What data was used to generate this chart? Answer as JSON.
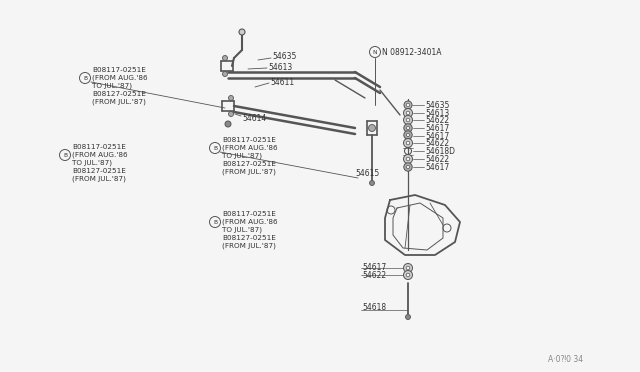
{
  "bg_color": "#f5f5f5",
  "lc": "#555555",
  "tc": "#333333",
  "watermark": "A·0⁈0 34",
  "parts_top": [
    "54635",
    "54613",
    "54611"
  ],
  "parts_center": [
    "54614",
    "54615"
  ],
  "parts_right_stack": [
    "54635",
    "54613",
    "54622",
    "54617",
    "54617",
    "54622",
    "54618D",
    "54622",
    "54617"
  ],
  "parts_bottom": [
    "54617",
    "54622",
    "54618"
  ],
  "N_label": "N 08912-3401A",
  "callout_B1": [
    "B08117-0251E",
    "(FROM AUG.'86",
    "TO JUL.'87)",
    "B08127-0251E",
    "(FROM JUL.'87)"
  ],
  "callout_B2": [
    "B08117-0251E",
    "(FROM AUG.'86",
    "TO JUL.'87)",
    "B08127-0251E",
    "(FROM JUL.'87)"
  ],
  "callout_B3": [
    "B08117-0251E",
    "(FROM AUG.'86",
    "TO JUL.'87)",
    "B08127-0251E",
    "(FROM JUL.'87)"
  ],
  "callout_B4": [
    "B08117-0251E",
    "(FROM AUG.'86",
    "TO JUL.'87)",
    "B08127-0251E",
    "(FROM JUL.'87)"
  ]
}
